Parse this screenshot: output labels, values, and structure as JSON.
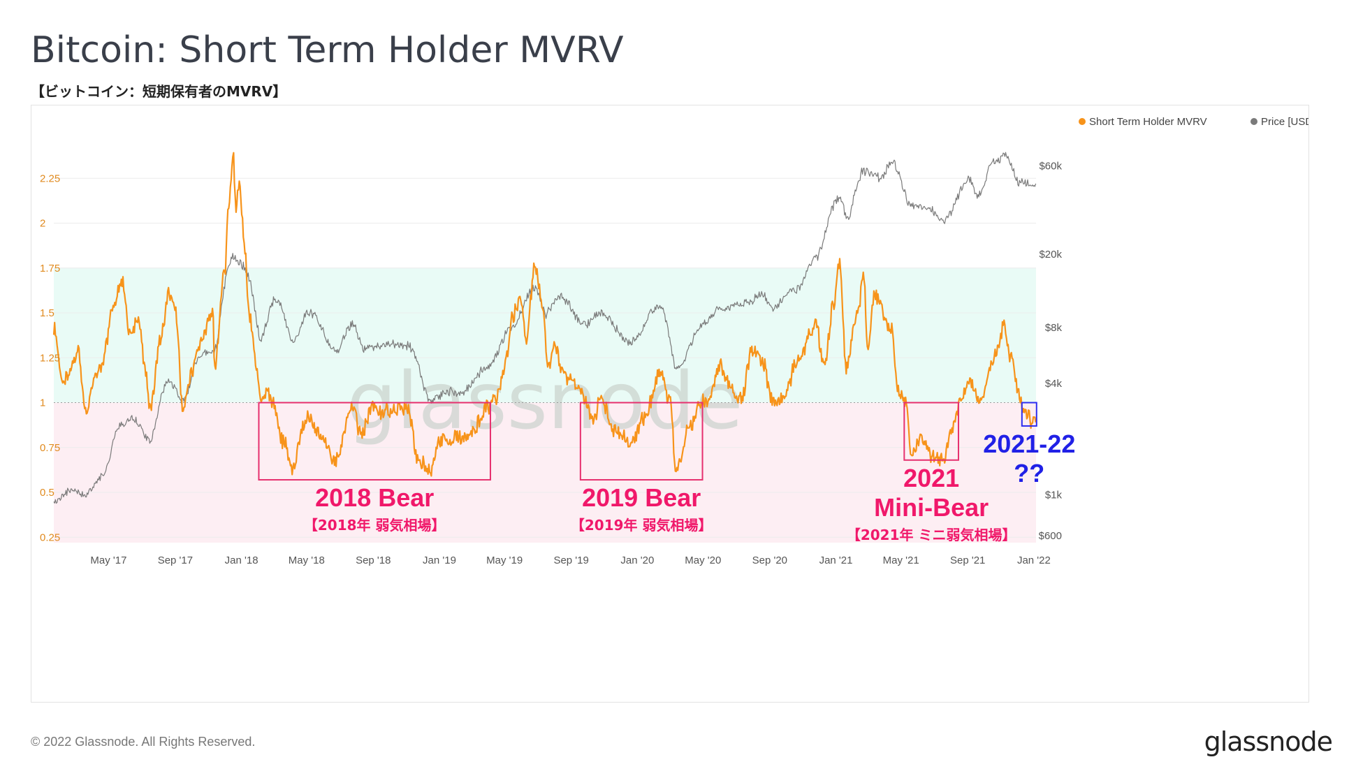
{
  "page": {
    "title": "Bitcoin: Short Term Holder MVRV",
    "subtitle": "【ビットコイン：短期保有者のMVRV】",
    "copyright": "© 2022 Glassnode. All Rights Reserved.",
    "logo": "glassnode",
    "watermark": "glassnode"
  },
  "colors": {
    "mvrv": "#f7931a",
    "price": "#7a7a7a",
    "above_band": "#e9fbf6",
    "below_band": "#fdeef3",
    "bear_box": "#e6306e",
    "bear_text": "#f0186a",
    "question_box": "#2d2df0",
    "question_text": "#2020e6"
  },
  "chart_data": {
    "type": "line",
    "title": "Bitcoin: Short Term Holder MVRV",
    "legend_position": "top-right",
    "x_range": [
      "2017-01-20",
      "2022-01-05"
    ],
    "x_ticks": [
      "May '17",
      "Sep '17",
      "Jan '18",
      "May '18",
      "Sep '18",
      "Jan '19",
      "May '19",
      "Sep '19",
      "Jan '20",
      "May '20",
      "Sep '20",
      "Jan '21",
      "May '21",
      "Sep '21",
      "Jan '22"
    ],
    "x_tick_dates": [
      "2017-05-01",
      "2017-09-01",
      "2018-01-01",
      "2018-05-01",
      "2018-09-01",
      "2019-01-01",
      "2019-05-01",
      "2019-09-01",
      "2020-01-01",
      "2020-05-01",
      "2020-09-01",
      "2021-01-01",
      "2021-05-01",
      "2021-09-01",
      "2022-01-01"
    ],
    "y_left": {
      "range": [
        0.22,
        2.5
      ],
      "ticks": [
        0.25,
        0.5,
        0.75,
        1,
        1.25,
        1.5,
        1.75,
        2,
        2.25
      ],
      "tick_labels": [
        "0.25",
        "0.5",
        "0.75",
        "1",
        "1.25",
        "1.5",
        "1.75",
        "2",
        "2.25"
      ]
    },
    "y_right": {
      "scale": "log",
      "range": [
        550,
        90000
      ],
      "ticks": [
        600,
        1000,
        4000,
        8000,
        20000,
        60000
      ],
      "tick_labels": [
        "$600",
        "$1k",
        "$4k",
        "$8k",
        "$20k",
        "$60k"
      ]
    },
    "reference_line": 1,
    "band": {
      "upper": 1.75
    },
    "series": [
      {
        "name": "Short Term Holder MVRV",
        "axis": "left",
        "points": [
          [
            "2017-01-20",
            1.42
          ],
          [
            "2017-02-05",
            1.1
          ],
          [
            "2017-02-20",
            1.18
          ],
          [
            "2017-03-05",
            1.3
          ],
          [
            "2017-03-20",
            0.95
          ],
          [
            "2017-04-05",
            1.12
          ],
          [
            "2017-04-20",
            1.22
          ],
          [
            "2017-05-10",
            1.55
          ],
          [
            "2017-05-25",
            1.68
          ],
          [
            "2017-06-10",
            1.38
          ],
          [
            "2017-06-25",
            1.45
          ],
          [
            "2017-07-10",
            1.15
          ],
          [
            "2017-07-16",
            0.95
          ],
          [
            "2017-08-05",
            1.35
          ],
          [
            "2017-08-20",
            1.6
          ],
          [
            "2017-09-01",
            1.52
          ],
          [
            "2017-09-15",
            0.98
          ],
          [
            "2017-10-01",
            1.15
          ],
          [
            "2017-10-20",
            1.35
          ],
          [
            "2017-11-10",
            1.52
          ],
          [
            "2017-11-12",
            1.2
          ],
          [
            "2017-12-01",
            1.72
          ],
          [
            "2017-12-08",
            2.08
          ],
          [
            "2017-12-17",
            2.4
          ],
          [
            "2017-12-22",
            2.05
          ],
          [
            "2017-12-28",
            2.25
          ],
          [
            "2018-01-06",
            1.9
          ],
          [
            "2018-01-15",
            1.5
          ],
          [
            "2018-01-30",
            1.2
          ],
          [
            "2018-02-06",
            0.98
          ],
          [
            "2018-02-20",
            1.05
          ],
          [
            "2018-03-01",
            0.98
          ],
          [
            "2018-03-20",
            0.78
          ],
          [
            "2018-04-06",
            0.62
          ],
          [
            "2018-04-25",
            0.86
          ],
          [
            "2018-05-05",
            0.92
          ],
          [
            "2018-05-25",
            0.82
          ],
          [
            "2018-06-25",
            0.68
          ],
          [
            "2018-07-24",
            0.98
          ],
          [
            "2018-08-10",
            0.82
          ],
          [
            "2018-08-30",
            0.98
          ],
          [
            "2018-09-20",
            0.95
          ],
          [
            "2018-10-20",
            0.98
          ],
          [
            "2018-11-05",
            0.96
          ],
          [
            "2018-11-20",
            0.7
          ],
          [
            "2018-12-15",
            0.62
          ],
          [
            "2019-01-01",
            0.78
          ],
          [
            "2019-02-10",
            0.8
          ],
          [
            "2019-03-01",
            0.84
          ],
          [
            "2019-04-02",
            0.98
          ],
          [
            "2019-04-20",
            1.05
          ],
          [
            "2019-05-01",
            1.18
          ],
          [
            "2019-05-15",
            1.48
          ],
          [
            "2019-05-30",
            1.58
          ],
          [
            "2019-06-10",
            1.35
          ],
          [
            "2019-06-26",
            1.78
          ],
          [
            "2019-07-10",
            1.52
          ],
          [
            "2019-07-20",
            1.2
          ],
          [
            "2019-08-01",
            1.3
          ],
          [
            "2019-08-20",
            1.15
          ],
          [
            "2019-09-10",
            1.1
          ],
          [
            "2019-09-25",
            1.02
          ],
          [
            "2019-10-10",
            0.9
          ],
          [
            "2019-10-26",
            1.02
          ],
          [
            "2019-11-20",
            0.85
          ],
          [
            "2019-12-20",
            0.78
          ],
          [
            "2020-01-15",
            0.92
          ],
          [
            "2020-02-12",
            1.18
          ],
          [
            "2020-03-01",
            1.0
          ],
          [
            "2020-03-13",
            0.62
          ],
          [
            "2020-04-05",
            0.85
          ],
          [
            "2020-04-30",
            1.02
          ],
          [
            "2020-05-10",
            1.0
          ],
          [
            "2020-06-01",
            1.2
          ],
          [
            "2020-06-20",
            1.08
          ],
          [
            "2020-07-10",
            1.02
          ],
          [
            "2020-08-01",
            1.3
          ],
          [
            "2020-08-20",
            1.22
          ],
          [
            "2020-09-05",
            1.02
          ],
          [
            "2020-09-25",
            1.02
          ],
          [
            "2020-10-25",
            1.25
          ],
          [
            "2020-11-25",
            1.45
          ],
          [
            "2020-12-10",
            1.22
          ],
          [
            "2020-12-28",
            1.55
          ],
          [
            "2021-01-08",
            1.78
          ],
          [
            "2021-01-20",
            1.2
          ],
          [
            "2021-02-10",
            1.5
          ],
          [
            "2021-02-21",
            1.72
          ],
          [
            "2021-03-01",
            1.3
          ],
          [
            "2021-03-13",
            1.6
          ],
          [
            "2021-04-14",
            1.4
          ],
          [
            "2021-04-25",
            1.05
          ],
          [
            "2021-05-10",
            1.02
          ],
          [
            "2021-05-20",
            0.72
          ],
          [
            "2021-06-10",
            0.8
          ],
          [
            "2021-06-25",
            0.7
          ],
          [
            "2021-07-20",
            0.68
          ],
          [
            "2021-08-01",
            0.84
          ],
          [
            "2021-08-20",
            1.02
          ],
          [
            "2021-09-05",
            1.12
          ],
          [
            "2021-09-25",
            1.0
          ],
          [
            "2021-10-20",
            1.25
          ],
          [
            "2021-11-08",
            1.42
          ],
          [
            "2021-11-20",
            1.25
          ],
          [
            "2021-12-04",
            1.05
          ],
          [
            "2021-12-15",
            0.93
          ],
          [
            "2021-12-28",
            0.9
          ],
          [
            "2022-01-05",
            0.92
          ]
        ]
      },
      {
        "name": "Price [USD]",
        "axis": "right",
        "points": [
          [
            "2017-01-20",
            900
          ],
          [
            "2017-02-20",
            1050
          ],
          [
            "2017-03-20",
            1000
          ],
          [
            "2017-04-20",
            1250
          ],
          [
            "2017-05-25",
            2400
          ],
          [
            "2017-06-15",
            2600
          ],
          [
            "2017-07-16",
            1950
          ],
          [
            "2017-08-20",
            4100
          ],
          [
            "2017-09-15",
            3200
          ],
          [
            "2017-10-20",
            5800
          ],
          [
            "2017-11-12",
            6000
          ],
          [
            "2017-12-17",
            19500
          ],
          [
            "2018-01-06",
            17000
          ],
          [
            "2018-02-06",
            7000
          ],
          [
            "2018-03-05",
            11500
          ],
          [
            "2018-04-06",
            6700
          ],
          [
            "2018-05-05",
            9700
          ],
          [
            "2018-06-25",
            5900
          ],
          [
            "2018-07-24",
            8300
          ],
          [
            "2018-08-15",
            6200
          ],
          [
            "2018-09-20",
            6500
          ],
          [
            "2018-11-05",
            6400
          ],
          [
            "2018-12-15",
            3200
          ],
          [
            "2019-01-15",
            3600
          ],
          [
            "2019-02-10",
            3600
          ],
          [
            "2019-04-02",
            4900
          ],
          [
            "2019-05-15",
            8000
          ],
          [
            "2019-06-26",
            13000
          ],
          [
            "2019-07-16",
            9500
          ],
          [
            "2019-08-10",
            11800
          ],
          [
            "2019-09-25",
            8300
          ],
          [
            "2019-10-26",
            9500
          ],
          [
            "2019-12-18",
            6600
          ],
          [
            "2020-02-12",
            10300
          ],
          [
            "2020-03-13",
            4800
          ],
          [
            "2020-05-10",
            8800
          ],
          [
            "2020-06-01",
            10100
          ],
          [
            "2020-07-27",
            11000
          ],
          [
            "2020-08-17",
            12300
          ],
          [
            "2020-09-05",
            10200
          ],
          [
            "2020-10-21",
            12900
          ],
          [
            "2020-11-25",
            19000
          ],
          [
            "2021-01-08",
            40000
          ],
          [
            "2021-01-22",
            31000
          ],
          [
            "2021-02-21",
            56000
          ],
          [
            "2021-03-25",
            52000
          ],
          [
            "2021-04-14",
            63000
          ],
          [
            "2021-05-19",
            37000
          ],
          [
            "2021-06-20",
            35500
          ],
          [
            "2021-07-20",
            30000
          ],
          [
            "2021-09-05",
            51000
          ],
          [
            "2021-09-21",
            41000
          ],
          [
            "2021-10-20",
            64000
          ],
          [
            "2021-11-10",
            68000
          ],
          [
            "2021-12-04",
            49000
          ],
          [
            "2022-01-05",
            46500
          ]
        ]
      }
    ],
    "annotations": [
      {
        "label": "2018 Bear",
        "sublabel": "【2018年 弱気相場】",
        "start": "2018-02-02",
        "end": "2019-04-05",
        "y_top": 1.0,
        "y_bottom": 0.57
      },
      {
        "label": "2019 Bear",
        "sublabel": "【2019年 弱気相場】",
        "start": "2019-09-18",
        "end": "2020-04-30",
        "y_top": 1.0,
        "y_bottom": 0.57
      },
      {
        "label": "2021",
        "label2": "Mini-Bear",
        "sublabel": "【2021年 ミニ弱気相場】",
        "start": "2021-05-07",
        "end": "2021-08-15",
        "y_top": 1.0,
        "y_bottom": 0.68
      },
      {
        "label": "2021-22",
        "label2": "??",
        "start": "2021-12-10",
        "end": "2022-01-06",
        "y_top": 1.0,
        "y_bottom": 0.87
      }
    ]
  }
}
